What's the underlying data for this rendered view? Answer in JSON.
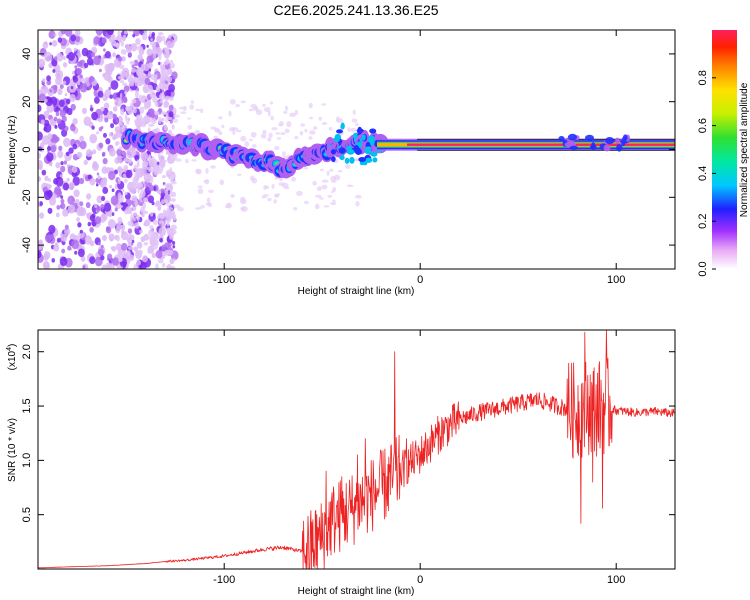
{
  "title": "C2E6.2025.241.13.36.E25",
  "chart_data": [
    {
      "type": "heatmap",
      "name": "spectrogram",
      "xlabel": "Height of straight line (km)",
      "ylabel": "Frequency (Hz)",
      "xlim": [
        -195,
        130
      ],
      "ylim": [
        -50,
        50
      ],
      "xticks": [
        -100,
        0,
        100
      ],
      "xtick_labels": [
        "-100",
        "0",
        "100"
      ],
      "yticks": [
        -40,
        -20,
        0,
        20,
        40
      ],
      "ytick_labels": [
        "-40",
        "-20",
        "0",
        "20",
        "40"
      ],
      "ridge_points": [
        [
          -150,
          5
        ],
        [
          -140,
          4
        ],
        [
          -130,
          3
        ],
        [
          -120,
          3
        ],
        [
          -110,
          1
        ],
        [
          -100,
          -1
        ],
        [
          -90,
          -3
        ],
        [
          -80,
          -5
        ],
        [
          -70,
          -8
        ],
        [
          -60,
          -4
        ],
        [
          -50,
          -2
        ],
        [
          -40,
          2
        ],
        [
          -30,
          3
        ],
        [
          -20,
          2
        ],
        [
          -10,
          2
        ],
        [
          0,
          2
        ],
        [
          50,
          2
        ],
        [
          90,
          2
        ],
        [
          130,
          2
        ]
      ],
      "colorbar": {
        "label": "Normalized spectral amplitude",
        "range": [
          0,
          1
        ],
        "ticks": [
          0.0,
          0.2,
          0.4,
          0.6,
          0.8
        ],
        "tick_labels": [
          "0.0",
          "0.2",
          "0.4",
          "0.6",
          "0.8"
        ]
      }
    },
    {
      "type": "line",
      "name": "snr",
      "xlabel": "Height of straight line (km)",
      "ylabel": "SNR (10 * v/v)",
      "scale_label": "(x10",
      "scale_exp": "4",
      "xlim": [
        -195,
        130
      ],
      "ylim": [
        0,
        2.2
      ],
      "xticks": [
        -100,
        0,
        100
      ],
      "xtick_labels": [
        "-100",
        "0",
        "100"
      ],
      "yticks": [
        0.5,
        1.0,
        1.5,
        2.0
      ],
      "ytick_labels": [
        "0.5",
        "1.0",
        "1.5",
        "2.0"
      ],
      "color": "#ee2222",
      "series": [
        {
          "name": "SNR",
          "x": [
            -195,
            -180,
            -160,
            -150,
            -140,
            -130,
            -120,
            -110,
            -100,
            -90,
            -80,
            -70,
            -60,
            -55,
            -50,
            -45,
            -40,
            -35,
            -30,
            -25,
            -20,
            -15,
            -10,
            -5,
            0,
            5,
            10,
            15,
            20,
            30,
            40,
            50,
            60,
            70,
            80,
            85,
            90,
            95,
            100,
            110,
            120,
            130
          ],
          "y": [
            0.01,
            0.02,
            0.03,
            0.04,
            0.05,
            0.07,
            0.08,
            0.1,
            0.12,
            0.15,
            0.18,
            0.2,
            0.16,
            0.22,
            0.3,
            0.45,
            0.5,
            0.55,
            0.62,
            0.68,
            0.75,
            0.82,
            0.9,
            0.98,
            1.05,
            1.15,
            1.25,
            1.32,
            1.38,
            1.44,
            1.48,
            1.52,
            1.56,
            1.5,
            1.45,
            1.5,
            1.48,
            1.5,
            1.46,
            1.44,
            1.45,
            1.43
          ]
        }
      ],
      "spikes": [
        {
          "x": -48,
          "y": 0.9
        },
        {
          "x": -40,
          "y": 0.85
        },
        {
          "x": -32,
          "y": 1.05
        },
        {
          "x": -28,
          "y": 1.2
        },
        {
          "x": -13,
          "y": 2.0
        },
        {
          "x": -7,
          "y": 1.2
        },
        {
          "x": 75,
          "y": 1.75
        },
        {
          "x": 82,
          "y": 0.42
        },
        {
          "x": 84,
          "y": 2.18
        },
        {
          "x": 88,
          "y": 0.8
        },
        {
          "x": 93,
          "y": 0.56
        },
        {
          "x": 95,
          "y": 2.2
        }
      ]
    }
  ]
}
